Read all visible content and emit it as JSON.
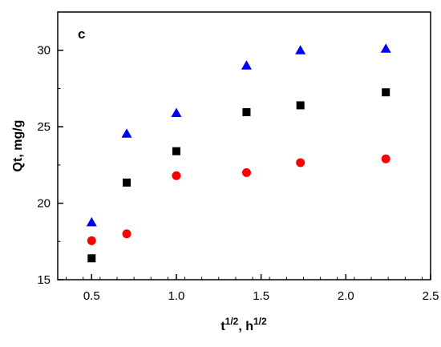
{
  "chart_data": {
    "type": "scatter",
    "panel_label": "c",
    "xlabel_base1": "t",
    "xlabel_sup1": "1/2",
    "xlabel_sep": ", ",
    "xlabel_base2": "h",
    "xlabel_sup2": "1/2",
    "ylabel": "Qt, mg/g",
    "xlim": [
      0.3,
      2.5
    ],
    "ylim": [
      15,
      32.5
    ],
    "x_ticks": [
      0.5,
      1.0,
      1.5,
      2.0,
      2.5
    ],
    "x_tick_labels": [
      "0.5",
      "1.0",
      "1.5",
      "2.0",
      "2.5"
    ],
    "y_ticks": [
      15,
      20,
      25,
      30
    ],
    "y_tick_labels": [
      "15",
      "20",
      "25",
      "30"
    ],
    "grid": false,
    "legend": "none",
    "series": [
      {
        "marker": "square",
        "color": "#000000",
        "x": [
          0.5,
          0.707,
          1.0,
          1.414,
          1.732,
          2.236
        ],
        "y": [
          16.4,
          21.35,
          23.4,
          25.95,
          26.4,
          27.25
        ]
      },
      {
        "marker": "circle",
        "color": "#ff0000",
        "x": [
          0.5,
          0.707,
          1.0,
          1.414,
          1.732,
          2.236
        ],
        "y": [
          17.55,
          18.0,
          21.8,
          22.0,
          22.65,
          22.9
        ]
      },
      {
        "marker": "triangle",
        "color": "#0000ff",
        "x": [
          0.5,
          0.707,
          1.0,
          1.414,
          1.732,
          2.236
        ],
        "y": [
          18.75,
          24.55,
          25.9,
          29.0,
          30.0,
          30.1
        ]
      }
    ]
  }
}
